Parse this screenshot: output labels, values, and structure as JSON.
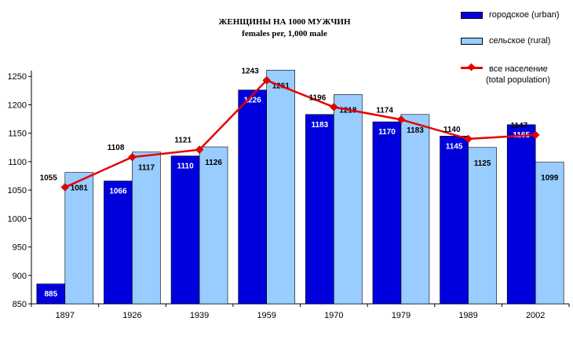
{
  "chart_data": {
    "type": "bar",
    "title": "ЖЕНЩИНЫ НА 1000 МУЖЧИН",
    "subtitle": "females per, 1,000 male",
    "categories": [
      "1897",
      "1926",
      "1939",
      "1959",
      "1970",
      "1979",
      "1989",
      "2002"
    ],
    "series": [
      {
        "name": "городское (urban)",
        "kind": "bar",
        "color": "#0000dd",
        "values": [
          885,
          1066,
          1110,
          1226,
          1183,
          1170,
          1145,
          1165
        ]
      },
      {
        "name": "сельское (rural)",
        "kind": "bar",
        "color": "#99ccff",
        "values": [
          1081,
          1117,
          1126,
          1261,
          1218,
          1183,
          1125,
          1099
        ]
      },
      {
        "name": "все население",
        "name_line2": "(total population)",
        "kind": "line",
        "color": "#e60000",
        "values": [
          1055,
          1108,
          1121,
          1243,
          1196,
          1174,
          1140,
          1147
        ]
      }
    ],
    "ylim": [
      850,
      1260
    ],
    "yticks": [
      850,
      900,
      950,
      1000,
      1050,
      1100,
      1150,
      1200,
      1250
    ],
    "grid": false,
    "legend_position": "top-right"
  }
}
